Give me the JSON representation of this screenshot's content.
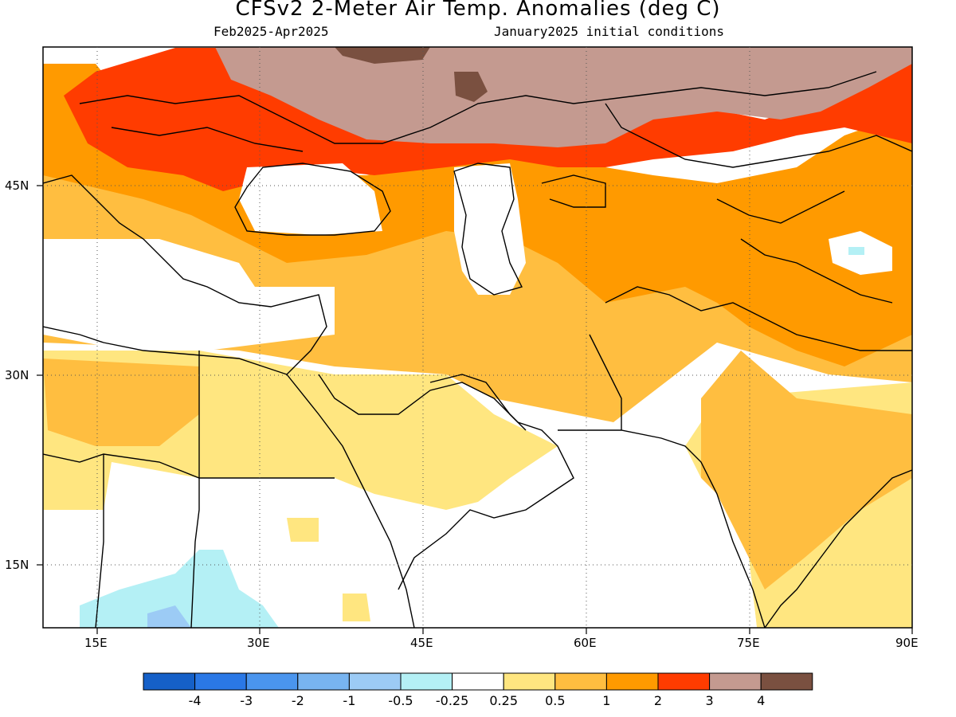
{
  "title": "CFSv2 2-Meter Air Temp. Anomalies (deg C)",
  "period": "Feb2025-Apr2025",
  "initial_conditions": "January2025 initial conditions",
  "axes": {
    "lon_labels": [
      "15E",
      "30E",
      "45E",
      "60E",
      "75E",
      "90E"
    ],
    "lat_labels": [
      "45N",
      "30N",
      "15N"
    ]
  },
  "legend": {
    "labels": [
      "-4",
      "-3",
      "-2",
      "-1",
      "-0.5",
      "-0.25",
      "0.25",
      "0.5",
      "1",
      "2",
      "3",
      "4"
    ],
    "colors": [
      "#1560c8",
      "#2a78e6",
      "#4a95ee",
      "#78b4f0",
      "#9ccbf5",
      "#b4f0f5",
      "#ffffff",
      "#ffe680",
      "#ffbe40",
      "#ff9a00",
      "#ff3c00",
      "#c49a90",
      "#7a5040"
    ]
  },
  "map": {
    "extent": {
      "lon": [
        10,
        90
      ],
      "lat": [
        10,
        55
      ]
    },
    "categories": {
      "c0": "#ffffff",
      "c1": "#ffe680",
      "c2": "#ffbe40",
      "c3": "#ff9a00",
      "c4": "#ff3c00",
      "c5": "#c49a90",
      "c6": "#7a5040",
      "cold1": "#b4f0f5",
      "cold2": "#9ccbf5"
    }
  }
}
